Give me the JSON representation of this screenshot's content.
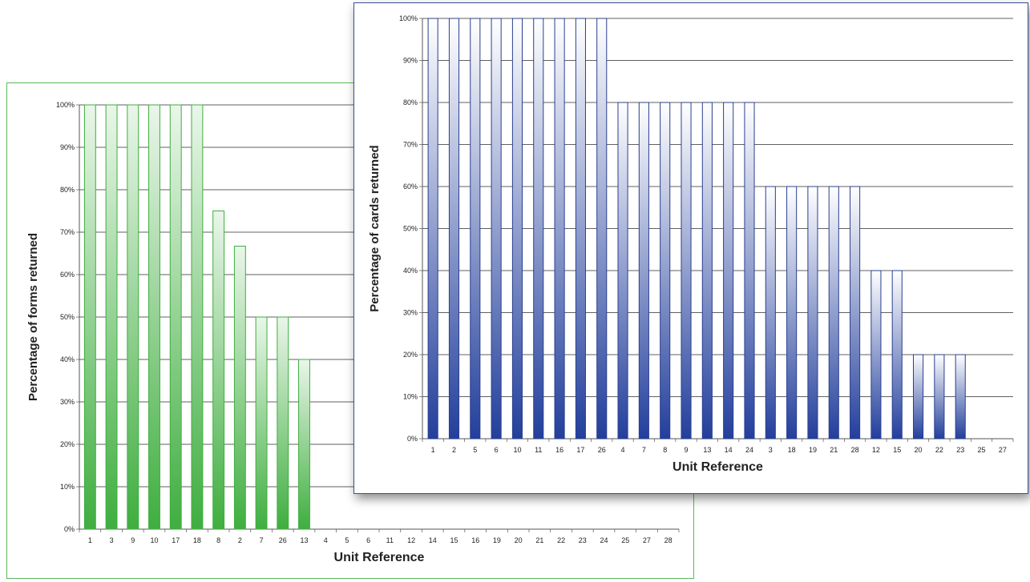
{
  "chart_data": [
    {
      "type": "bar",
      "title": "",
      "xlabel": "Unit Reference",
      "ylabel": "Percentage of forms returned",
      "ylim": [
        0,
        100
      ],
      "yticks": [
        "0%",
        "10%",
        "20%",
        "30%",
        "40%",
        "50%",
        "60%",
        "70%",
        "80%",
        "90%",
        "100%"
      ],
      "grid": true,
      "legend": "none",
      "color_top": "#eaf6ea",
      "color_bottom": "#3fae3f",
      "border_color": "#3fae3f",
      "categories": [
        "1",
        "3",
        "9",
        "10",
        "17",
        "18",
        "8",
        "2",
        "7",
        "26",
        "13",
        "4",
        "5",
        "6",
        "11",
        "12",
        "14",
        "15",
        "16",
        "19",
        "20",
        "21",
        "22",
        "23",
        "24",
        "25",
        "27",
        "28"
      ],
      "values": [
        100,
        100,
        100,
        100,
        100,
        100,
        75,
        66.7,
        50,
        50,
        40,
        0,
        0,
        0,
        0,
        0,
        0,
        0,
        0,
        0,
        0,
        0,
        0,
        0,
        0,
        0,
        0,
        0
      ]
    },
    {
      "type": "bar",
      "title": "",
      "xlabel": "Unit Reference",
      "ylabel": "Percentage of cards returned",
      "ylim": [
        0,
        100
      ],
      "yticks": [
        "0%",
        "10%",
        "20%",
        "30%",
        "40%",
        "50%",
        "60%",
        "70%",
        "80%",
        "90%",
        "100%"
      ],
      "grid": true,
      "legend": "none",
      "color_top": "#ffffff",
      "color_bottom": "#233f9c",
      "border_color": "#2b3f8f",
      "categories": [
        "1",
        "2",
        "5",
        "6",
        "10",
        "11",
        "16",
        "17",
        "26",
        "4",
        "7",
        "8",
        "9",
        "13",
        "14",
        "24",
        "3",
        "18",
        "19",
        "21",
        "28",
        "12",
        "15",
        "20",
        "22",
        "23",
        "25",
        "27"
      ],
      "values": [
        100,
        100,
        100,
        100,
        100,
        100,
        100,
        100,
        100,
        80,
        80,
        80,
        80,
        80,
        80,
        80,
        60,
        60,
        60,
        60,
        60,
        40,
        40,
        20,
        20,
        20,
        0,
        0
      ]
    }
  ]
}
